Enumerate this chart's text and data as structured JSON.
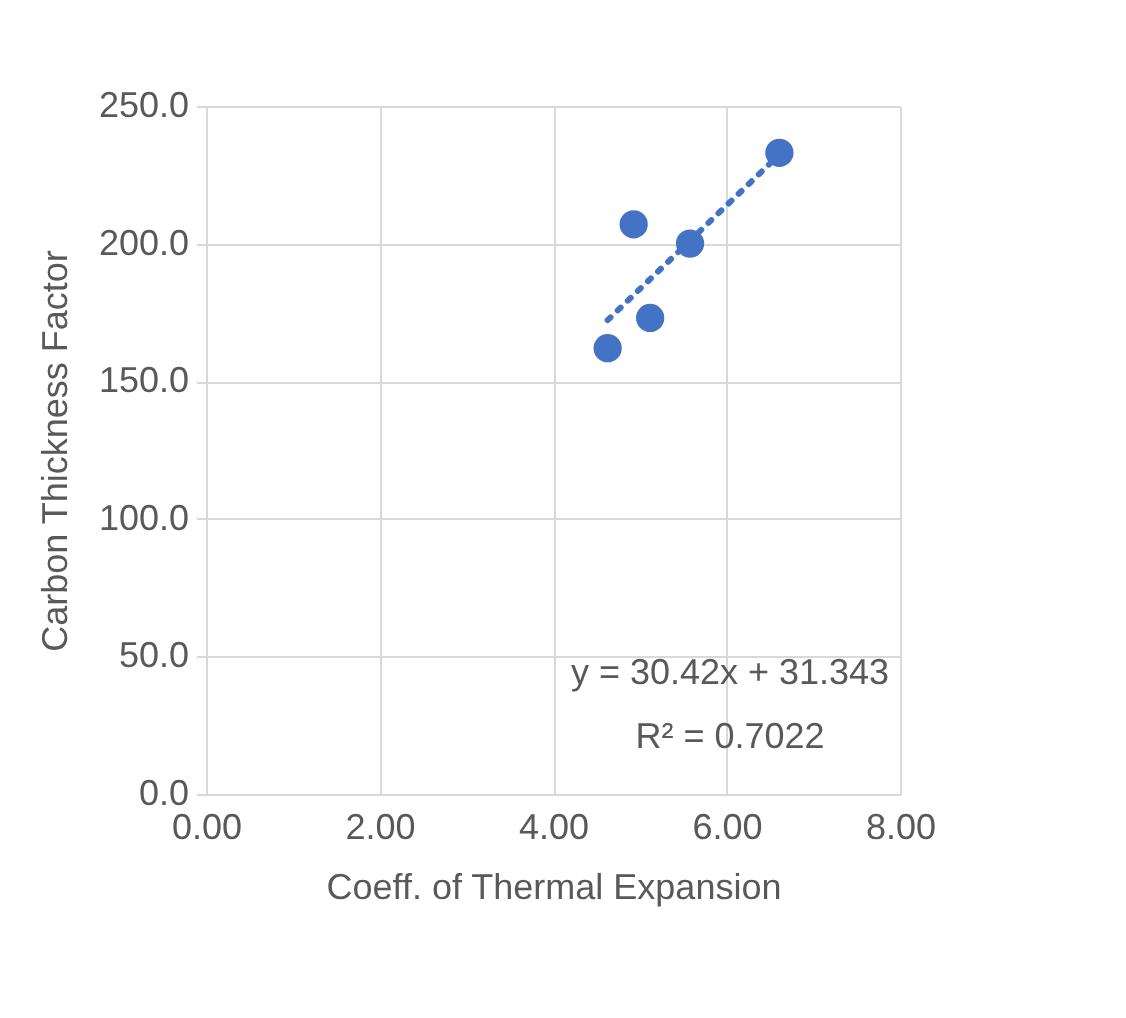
{
  "chart_data": {
    "type": "scatter",
    "xlabel": "Coeff. of Thermal Expansion",
    "ylabel": "Carbon Thickness Factor",
    "series": [
      {
        "color": "#4472c4",
        "x": [
          4.63,
          4.93,
          5.12,
          5.58,
          6.61
        ],
        "values": [
          162,
          207,
          173,
          200,
          233
        ],
        "marker": "circle"
      },
      {
        "type": "line",
        "color": "#4472c4",
        "x": [
          4.63,
          6.61
        ],
        "values": [
          172.2,
          232.4
        ],
        "line_style": "dotted"
      }
    ],
    "annotations": [
      "y = 30.42x + 31.343",
      "R² = 0.7022"
    ],
    "xlim": [
      0,
      8
    ],
    "xticks": [
      {
        "value": 0,
        "label": "0.00"
      },
      {
        "value": 2,
        "label": "2.00"
      },
      {
        "value": 4,
        "label": "4.00"
      },
      {
        "value": 6,
        "label": "6.00"
      },
      {
        "value": 8,
        "label": "8.00"
      }
    ],
    "ylim": [
      0,
      250
    ],
    "yticks": [
      {
        "value": 0,
        "label": "0.0"
      },
      {
        "value": 50,
        "label": "50.0"
      },
      {
        "value": 100,
        "label": "100.0"
      },
      {
        "value": 150,
        "label": "150.0"
      },
      {
        "value": 200,
        "label": "200.0"
      },
      {
        "value": 250,
        "label": "250.0"
      }
    ],
    "grid": true
  }
}
